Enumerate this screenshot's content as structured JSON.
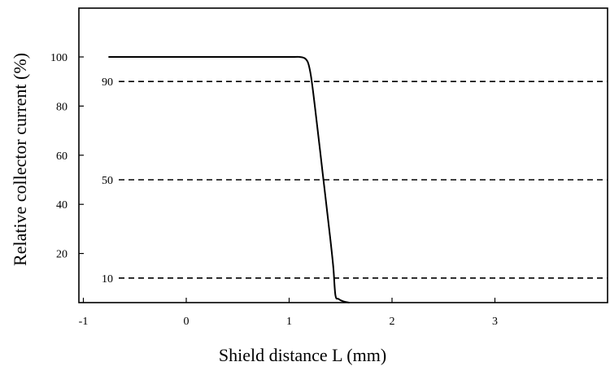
{
  "chart_data": {
    "type": "line",
    "xlabel": "Shield distance L (mm)",
    "ylabel": "Relative collector current (%)",
    "xlim": [
      -1,
      4
    ],
    "ylim": [
      0,
      101
    ],
    "grid": false,
    "x_ticks": [
      {
        "value": -1,
        "label": "-1"
      },
      {
        "value": 0,
        "label": "0"
      },
      {
        "value": 1,
        "label": "1"
      },
      {
        "value": 2,
        "label": "2"
      },
      {
        "value": 3,
        "label": "3"
      }
    ],
    "y_ticks": [
      {
        "value": 20,
        "label": "20"
      },
      {
        "value": 40,
        "label": "40"
      },
      {
        "value": 60,
        "label": "60"
      },
      {
        "value": 80,
        "label": "80"
      },
      {
        "value": 100,
        "label": "100"
      }
    ],
    "reference_lines": [
      {
        "value": 90,
        "label": "90",
        "style": "dashed"
      },
      {
        "value": 50,
        "label": "50",
        "style": "dashed"
      },
      {
        "value": 10,
        "label": "10",
        "style": "dashed"
      }
    ],
    "series": [
      {
        "color": "#000000",
        "x": [
          -0.75,
          0.0,
          0.5,
          1.0,
          1.1,
          1.15,
          1.18,
          1.2,
          1.22,
          1.25,
          1.3,
          1.35,
          1.4,
          1.43,
          1.45,
          1.48,
          1.52,
          1.58
        ],
        "y": [
          100,
          100,
          100,
          100,
          100,
          99.5,
          98,
          95,
          90,
          80,
          62,
          44,
          26,
          14,
          3,
          1.5,
          0.6,
          0
        ]
      }
    ]
  }
}
